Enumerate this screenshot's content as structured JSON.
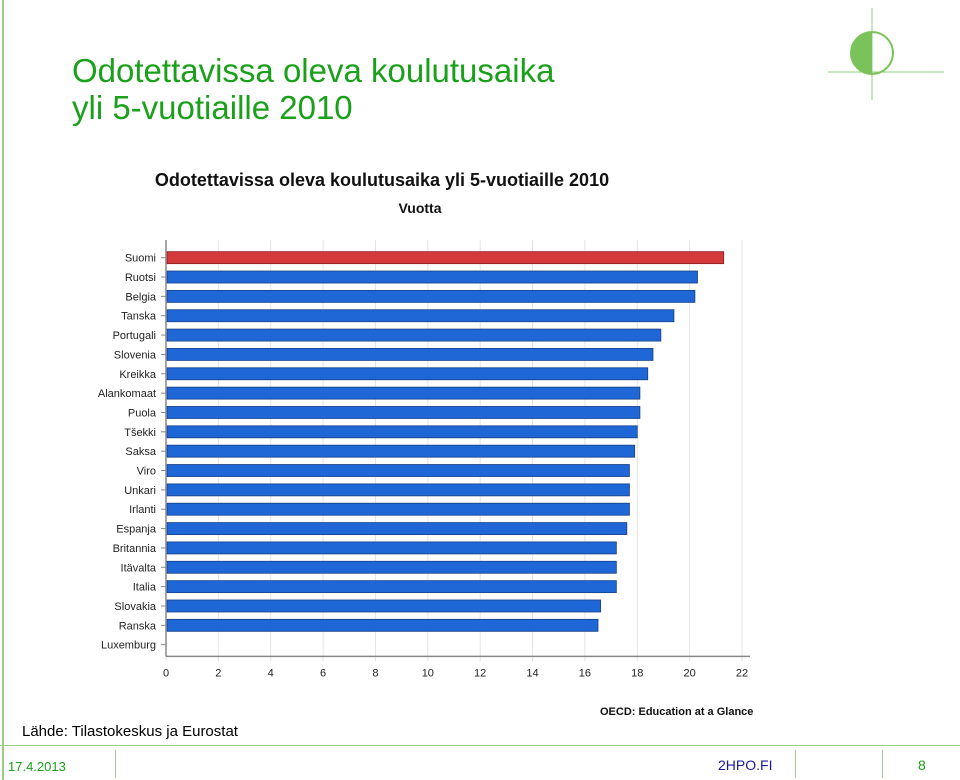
{
  "slide": {
    "title_line1": "Odotettavissa oleva koulutusaika",
    "title_line2": "yli 5-vuotiaille 2010",
    "source": "Lähde: Tilastokeskus ja Eurostat",
    "footer_date": "17.4.2013",
    "footer_site": "2HPO.FI",
    "page_number": "8"
  },
  "colors": {
    "title": "#1aa01a",
    "bar_default": "#1f66d6",
    "bar_highlight": "#d43a3a"
  },
  "chart_data": {
    "type": "bar",
    "orientation": "horizontal",
    "title": "Odotettavissa oleva koulutusaika yli 5-vuotiaille 2010",
    "subtitle": "Vuotta",
    "source_note": "OECD: Education at a Glance",
    "categories": [
      "Suomi",
      "Ruotsi",
      "Belgia",
      "Tanska",
      "Portugali",
      "Slovenia",
      "Kreikka",
      "Alankomaat",
      "Puola",
      "Tšekki",
      "Saksa",
      "Viro",
      "Unkari",
      "Irlanti",
      "Espanja",
      "Britannia",
      "Itävalta",
      "Italia",
      "Slovakia",
      "Ranska",
      "Luxemburg"
    ],
    "values": [
      21.3,
      20.3,
      20.2,
      19.4,
      18.9,
      18.6,
      18.4,
      18.1,
      18.1,
      18.0,
      17.9,
      17.7,
      17.7,
      17.7,
      17.6,
      17.2,
      17.2,
      17.2,
      16.6,
      16.5,
      null
    ],
    "highlight": "Suomi",
    "xlim": [
      0,
      22
    ],
    "xticks": [
      0,
      2,
      4,
      6,
      8,
      10,
      12,
      14,
      16,
      18,
      20,
      22
    ],
    "grid": true
  }
}
